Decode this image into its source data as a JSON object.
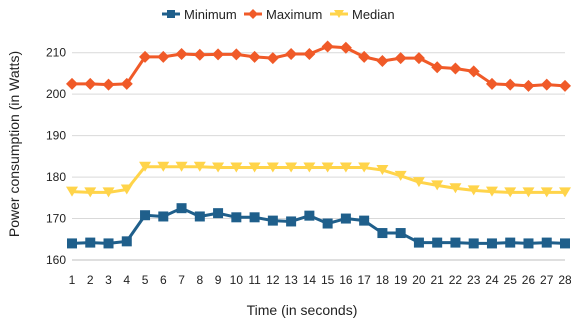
{
  "chart_data": {
    "type": "line",
    "title": "",
    "xlabel": "Time (in seconds)",
    "ylabel": "Power consumption (in Watts)",
    "x": [
      1,
      2,
      3,
      4,
      5,
      6,
      7,
      8,
      9,
      10,
      11,
      12,
      13,
      14,
      15,
      16,
      17,
      18,
      19,
      20,
      21,
      22,
      23,
      24,
      25,
      26,
      27,
      28
    ],
    "ylim": [
      160,
      215
    ],
    "yticks": [
      160,
      170,
      180,
      190,
      200,
      210
    ],
    "grid": "horizontal",
    "legend_position": "top",
    "series": [
      {
        "name": "Minimum",
        "color": "#1f5f8b",
        "marker": "square",
        "values": [
          164,
          164.2,
          164,
          164.5,
          170.8,
          170.5,
          172.5,
          170.5,
          171.3,
          170.3,
          170.3,
          169.5,
          169.3,
          170.7,
          168.8,
          170,
          169.5,
          166.5,
          166.5,
          164.2,
          164.2,
          164.2,
          164,
          164,
          164.2,
          164,
          164.2,
          164
        ]
      },
      {
        "name": "Maximum",
        "color": "#f05a28",
        "marker": "diamond",
        "values": [
          202.5,
          202.5,
          202.3,
          202.5,
          209,
          209,
          209.7,
          209.5,
          209.6,
          209.6,
          209,
          208.7,
          209.7,
          209.7,
          211.5,
          211.2,
          209,
          208,
          208.7,
          208.7,
          206.5,
          206.2,
          205.5,
          202.5,
          202.3,
          202,
          202.3,
          202
        ]
      },
      {
        "name": "Median",
        "color": "#ffd44a",
        "marker": "triangle-down",
        "values": [
          176.5,
          176.3,
          176.3,
          177,
          182.5,
          182.5,
          182.5,
          182.5,
          182.3,
          182.3,
          182.3,
          182.3,
          182.3,
          182.3,
          182.3,
          182.3,
          182.3,
          181.7,
          180.3,
          178.8,
          178,
          177.3,
          176.8,
          176.5,
          176.3,
          176.3,
          176.3,
          176.3
        ]
      }
    ]
  }
}
